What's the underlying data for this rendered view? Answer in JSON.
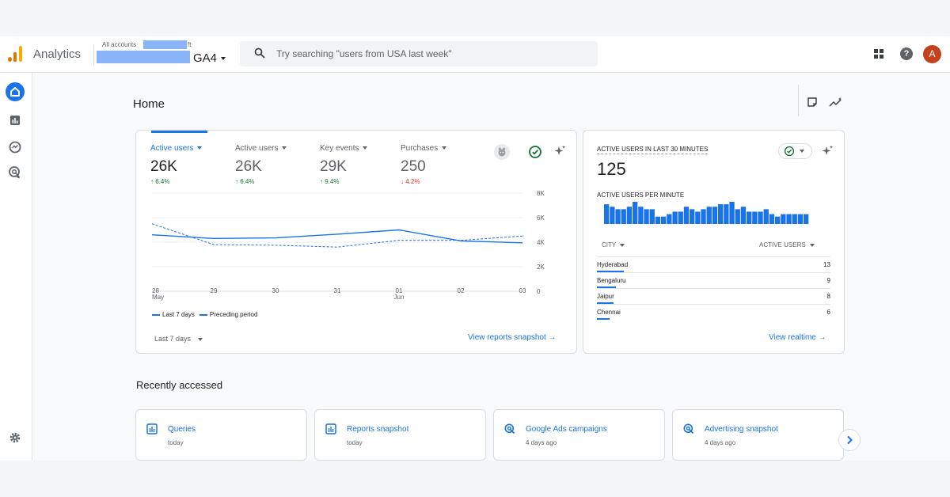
{
  "app": {
    "name": "Analytics"
  },
  "account": {
    "prefix": "All accounts",
    "suffix": "ft",
    "property": "GA4"
  },
  "search": {
    "placeholder": "Try searching \"users from USA last week\""
  },
  "user": {
    "avatar_letter": "A"
  },
  "help": {
    "glyph": "?"
  },
  "icons": {
    "logo": "analytics-logo-icon",
    "search": "search-icon",
    "apps": "apps-grid-icon",
    "help": "help-icon",
    "home": "home-icon",
    "reports": "reports-icon",
    "explore": "explore-icon",
    "advertising": "advertising-icon",
    "settings": "gear-icon",
    "notes": "notes-icon",
    "insights": "insights-icon",
    "compare": "compare-icon",
    "check": "check-circle-icon",
    "sparkle": "sparkle-icon",
    "chevron": "chevron-right-icon"
  },
  "colors": {
    "accent": "#1a73e8",
    "up": "#137333",
    "down": "#d93025",
    "logo_orange": "#f9ab00",
    "logo_dark": "#e37400"
  },
  "home": {
    "title": "Home"
  },
  "overview": {
    "metrics": [
      {
        "label": "Active users",
        "value": "26K",
        "delta": "↑ 6.4%",
        "trend": "up",
        "selected": true
      },
      {
        "label": "Active users",
        "value": "26K",
        "delta": "↑ 6.4%",
        "trend": "up",
        "selected": false
      },
      {
        "label": "Key events",
        "value": "29K",
        "delta": "↑ 9.4%",
        "trend": "up",
        "selected": false
      },
      {
        "label": "Purchases",
        "value": "250",
        "delta": "↓ 4.2%",
        "trend": "down",
        "selected": false
      }
    ],
    "legend": {
      "current": "Last 7 days",
      "previous": "Preceding period"
    },
    "period": "Last 7 days",
    "link": "View reports snapshot →"
  },
  "chart_data": {
    "type": "line",
    "x": [
      "28\nMay",
      "29",
      "30",
      "31",
      "01\nJun",
      "02",
      "03"
    ],
    "yticks": [
      "8K",
      "6K",
      "4K",
      "2K",
      "0"
    ],
    "ylim": [
      0,
      8000
    ],
    "series": [
      {
        "name": "Last 7 days",
        "style": "solid",
        "values": [
          4600,
          4300,
          4350,
          4650,
          5000,
          4100,
          3950
        ]
      },
      {
        "name": "Preceding period",
        "style": "dashed",
        "values": [
          5500,
          3800,
          3750,
          3600,
          4150,
          4150,
          4500
        ]
      }
    ],
    "grid": true
  },
  "realtime": {
    "title": "ACTIVE USERS IN LAST 30 MINUTES",
    "value": "125",
    "subtitle": "ACTIVE USERS PER MINUTE",
    "per_minute": [
      8,
      7,
      6,
      6,
      7,
      9,
      7,
      6,
      6,
      3,
      3,
      4,
      5,
      5,
      7,
      6,
      5,
      6,
      7,
      7,
      8,
      8,
      9,
      6,
      7,
      5,
      5,
      5,
      6,
      4,
      3,
      4,
      4,
      4,
      4,
      4
    ],
    "col_city": "CITY",
    "col_users": "ACTIVE USERS",
    "rows": [
      {
        "city": "Hyderabad",
        "users": "13"
      },
      {
        "city": "Bengaluru",
        "users": "9"
      },
      {
        "city": "Jaipur",
        "users": "8"
      },
      {
        "city": "Chennai",
        "users": "6"
      }
    ],
    "link": "View realtime →"
  },
  "recent": {
    "title": "Recently accessed",
    "items": [
      {
        "title": "Queries",
        "sub": "today",
        "icon": "reports-icon"
      },
      {
        "title": "Reports snapshot",
        "sub": "today",
        "icon": "reports-icon"
      },
      {
        "title": "Google Ads campaigns",
        "sub": "4 days ago",
        "icon": "advertising-icon"
      },
      {
        "title": "Advertising snapshot",
        "sub": "4 days ago",
        "icon": "advertising-icon"
      }
    ]
  }
}
